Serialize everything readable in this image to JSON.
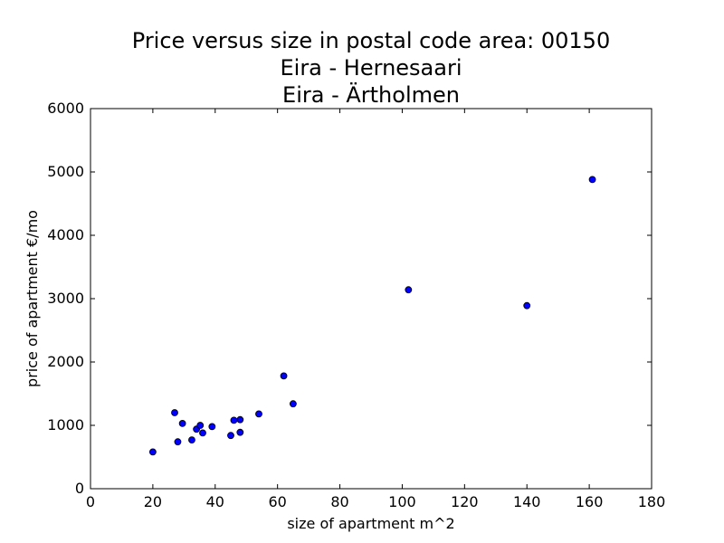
{
  "chart_data": {
    "type": "scatter",
    "title": [
      "Price versus size in postal code area: 00150",
      "Eira - Hernesaari",
      "Eira - Ärtholmen"
    ],
    "xlabel": "size of apartment m^2",
    "ylabel": "price of apartment €/mo",
    "xlim": [
      0,
      180
    ],
    "ylim": [
      0,
      6000
    ],
    "xticks": [
      0,
      20,
      40,
      60,
      80,
      100,
      120,
      140,
      160,
      180
    ],
    "yticks": [
      0,
      1000,
      2000,
      3000,
      4000,
      5000,
      6000
    ],
    "grid": false,
    "marker_color": "#0000ff",
    "points": [
      {
        "x": 20,
        "y": 580
      },
      {
        "x": 27,
        "y": 1200
      },
      {
        "x": 28,
        "y": 740
      },
      {
        "x": 29.5,
        "y": 1030
      },
      {
        "x": 32.5,
        "y": 770
      },
      {
        "x": 34,
        "y": 940
      },
      {
        "x": 35.2,
        "y": 1000
      },
      {
        "x": 36,
        "y": 880
      },
      {
        "x": 39,
        "y": 980
      },
      {
        "x": 45,
        "y": 840
      },
      {
        "x": 46,
        "y": 1080
      },
      {
        "x": 48,
        "y": 890
      },
      {
        "x": 48,
        "y": 1090
      },
      {
        "x": 54,
        "y": 1180
      },
      {
        "x": 62,
        "y": 1780
      },
      {
        "x": 65,
        "y": 1340
      },
      {
        "x": 102,
        "y": 3140
      },
      {
        "x": 140,
        "y": 2890
      },
      {
        "x": 161,
        "y": 4880
      }
    ]
  }
}
